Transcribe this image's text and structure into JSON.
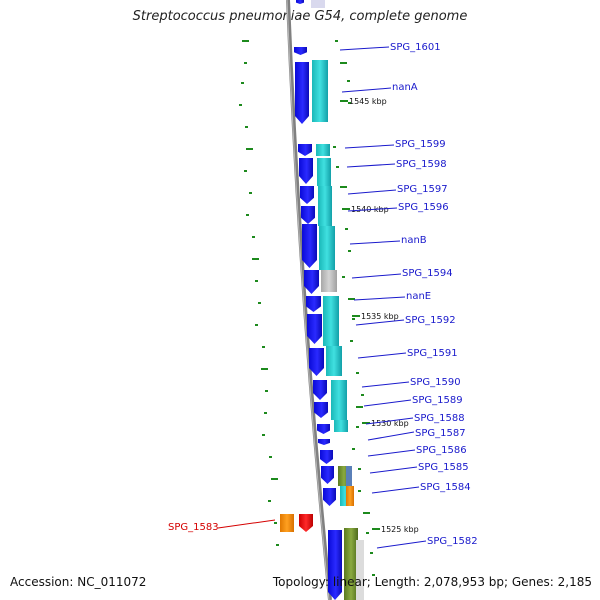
{
  "title": "Streptococcus pneumoniae G54, complete genome",
  "footer": {
    "accession": "Accession: NC_011072",
    "topology": "Topology: linear; Length: 2,078,953 bp; Genes: 2,185"
  },
  "ticks": [
    "1545 kbp",
    "1540 kbp",
    "1535 kbp",
    "1530 kbp",
    "1525 kbp"
  ],
  "genes": [
    {
      "label": "SPG_1601",
      "strand": "reverse",
      "color": "#1a1af0"
    },
    {
      "label": "nanA",
      "strand": "reverse",
      "color": "#1a1af0"
    },
    {
      "label": "SPG_1599",
      "strand": "reverse",
      "color": "#1a1af0"
    },
    {
      "label": "SPG_1598",
      "strand": "reverse",
      "color": "#1a1af0"
    },
    {
      "label": "SPG_1597",
      "strand": "reverse",
      "color": "#1a1af0"
    },
    {
      "label": "SPG_1596",
      "strand": "reverse",
      "color": "#1a1af0"
    },
    {
      "label": "nanB",
      "strand": "reverse",
      "color": "#1a1af0"
    },
    {
      "label": "SPG_1594",
      "strand": "reverse",
      "color": "#1a1af0"
    },
    {
      "label": "nanE",
      "strand": "reverse",
      "color": "#1a1af0"
    },
    {
      "label": "SPG_1592",
      "strand": "reverse",
      "color": "#1a1af0"
    },
    {
      "label": "SPG_1591",
      "strand": "reverse",
      "color": "#1a1af0"
    },
    {
      "label": "SPG_1590",
      "strand": "reverse",
      "color": "#1a1af0"
    },
    {
      "label": "SPG_1589",
      "strand": "reverse",
      "color": "#1a1af0"
    },
    {
      "label": "SPG_1588",
      "strand": "reverse",
      "color": "#1a1af0"
    },
    {
      "label": "SPG_1587",
      "strand": "reverse",
      "color": "#1a1af0"
    },
    {
      "label": "SPG_1586",
      "strand": "reverse",
      "color": "#1a1af0"
    },
    {
      "label": "SPG_1585",
      "strand": "reverse",
      "color": "#1a1af0"
    },
    {
      "label": "SPG_1584",
      "strand": "reverse",
      "color": "#1a1af0"
    },
    {
      "label": "SPG_1583",
      "strand": "forward",
      "color": "#ee1111",
      "selected": true
    },
    {
      "label": "SPG_1582",
      "strand": "reverse",
      "color": "#1a1af0"
    }
  ],
  "colors": {
    "backbone": "#808080",
    "gene_reverse": "#1a1af0",
    "gene_forward": "#ee1111",
    "cds_cyan": "#22cccc",
    "cds_grey": "#bbbbbb",
    "cds_olive": "#6b8c2a",
    "cds_orange": "#ff8c00",
    "gc_marker": "#1d8a1d",
    "label_default": "#1a1acc",
    "label_selected": "#d40000"
  }
}
